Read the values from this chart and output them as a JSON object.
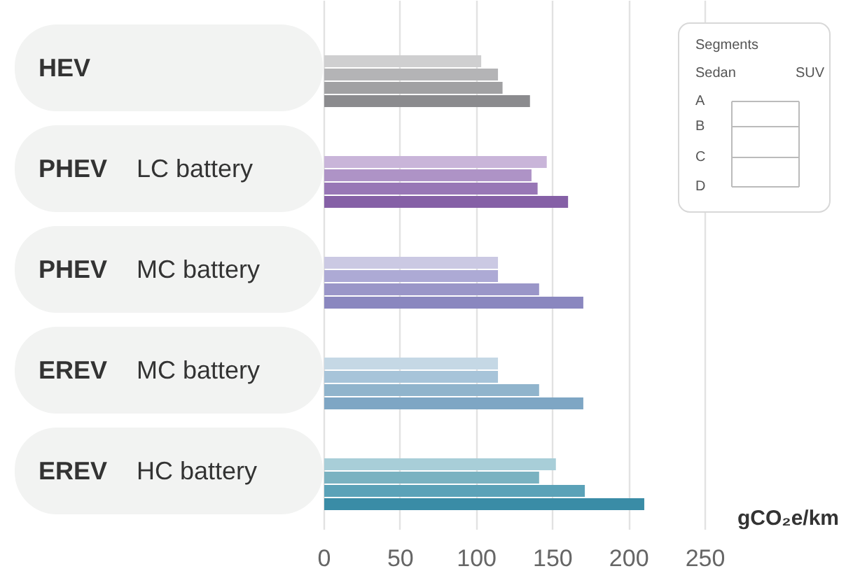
{
  "chart_data": {
    "type": "bar",
    "orientation": "horizontal",
    "xlabel": "gCO₂e/km",
    "legend_title": "Segments",
    "grid": "x",
    "categories": [
      "HEV",
      "PHEV LC battery",
      "PHEV MC battery",
      "EREV MC battery",
      "EREV HC battery"
    ],
    "xlim": [
      0,
      250
    ],
    "xticks": [
      0,
      50,
      100,
      150,
      200,
      250
    ],
    "annotations": [
      "Sedan",
      "SUV",
      "A",
      "B",
      "C",
      "D"
    ],
    "series": [
      {
        "values": [
          null,
          null,
          null,
          null,
          null
        ]
      },
      {
        "values": [
          null,
          null,
          null,
          null,
          null
        ]
      },
      {
        "values": [
          103,
          146,
          114,
          114,
          152
        ],
        "colors": [
          "#cfcfd0",
          "#c9b5d9",
          "#cbc9e3",
          "#c5d8e5",
          "#a8ced8"
        ]
      },
      {
        "values": [
          114,
          136,
          114,
          114,
          141
        ],
        "colors": [
          "#b4b4b6",
          "#ae93c6",
          "#adaad5",
          "#a7c4d9",
          "#7ab2c1"
        ]
      },
      {
        "values": [
          117,
          140,
          141,
          141,
          171
        ],
        "colors": [
          "#a1a1a3",
          "#9877b6",
          "#9a96c8",
          "#90b4cc",
          "#5ba2b8"
        ]
      },
      {
        "values": [
          135,
          160,
          170,
          170,
          210
        ],
        "colors": [
          "#8b8b8e",
          "#8560a6",
          "#8a87bf",
          "#7ea6c4",
          "#3a8ca6"
        ]
      }
    ]
  }
}
